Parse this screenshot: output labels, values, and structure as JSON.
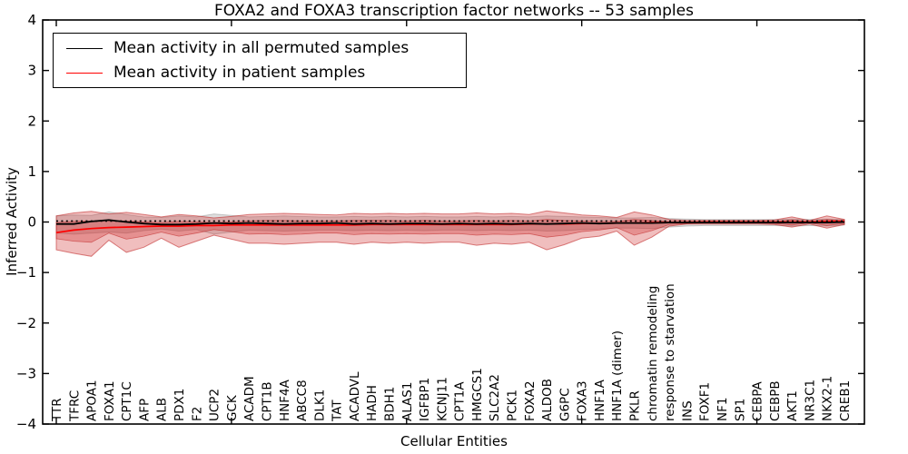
{
  "title": "FOXA2 and FOXA3 transcription factor networks -- 53 samples",
  "axes": {
    "xlabel": "Cellular Entities",
    "ylabel": "Inferred Activity",
    "ylim": [
      -4,
      4
    ],
    "ytick_values": [
      4,
      3,
      2,
      1,
      0,
      -1,
      -2,
      -3,
      -4
    ],
    "ytick_labels": [
      "4",
      "3",
      "2",
      "1",
      "0",
      "−1",
      "−2",
      "−3",
      "−4"
    ],
    "grid": false
  },
  "legend": {
    "position": "upper left",
    "items": [
      {
        "label": "Mean activity in all permuted samples",
        "color": "#000000"
      },
      {
        "label": "Mean activity in patient samples",
        "color": "#ff0000"
      }
    ]
  },
  "colors": {
    "patient_band": "rgba(205,40,40,0.30)",
    "patient_band_edge": "rgba(190,30,30,0.55)",
    "permuted_band": "rgba(0,0,0,0.13)",
    "permuted_band_edge": "rgba(0,0,0,0.18)",
    "permuted_line": "#000000",
    "patient_line": "#ff0000",
    "zero_line": "#000000",
    "spine": "#000000"
  },
  "chart_data": {
    "type": "line",
    "title": "FOXA2 and FOXA3 transcription factor networks -- 53 samples",
    "xlabel": "Cellular Entities",
    "ylabel": "Inferred Activity",
    "ylim": [
      -4,
      4
    ],
    "legend_position": "upper left",
    "categories": [
      "TTR",
      "TFRC",
      "APOA1",
      "FOXA1",
      "CPT1C",
      "AFP",
      "ALB",
      "PDX1",
      "F2",
      "UCP2",
      "GCK",
      "ACADM",
      "CPT1B",
      "HNF4A",
      "ABCC8",
      "DLK1",
      "TAT",
      "ACADVL",
      "HADH",
      "BDH1",
      "ALAS1",
      "IGFBP1",
      "KCNJ11",
      "CPT1A",
      "HMGCS1",
      "SLC2A2",
      "PCK1",
      "FOXA2",
      "ALDOB",
      "G6PC",
      "FOXA3",
      "HNF1A",
      "HNF1A (dimer)",
      "PKLR",
      "chromatin remodeling",
      "response to starvation",
      "INS",
      "FOXF1",
      "NF1",
      "SP1",
      "CEBPA",
      "CEBPB",
      "AKT1",
      "NR3C1",
      "NKX2-1",
      "CREB1"
    ],
    "series": [
      {
        "name": "Mean activity in all permuted samples",
        "color": "#000000",
        "values": [
          -0.04,
          -0.04,
          0.01,
          0.04,
          0.0,
          -0.03,
          -0.05,
          -0.05,
          -0.04,
          -0.02,
          -0.03,
          -0.02,
          -0.03,
          -0.04,
          -0.03,
          -0.03,
          -0.02,
          -0.04,
          -0.03,
          -0.04,
          -0.03,
          -0.03,
          -0.04,
          -0.03,
          -0.04,
          -0.03,
          -0.04,
          -0.03,
          -0.04,
          -0.03,
          -0.02,
          -0.03,
          -0.02,
          -0.02,
          -0.02,
          -0.01,
          -0.01,
          -0.01,
          -0.01,
          -0.01,
          -0.01,
          -0.01,
          -0.01,
          -0.01,
          -0.01,
          0.0
        ]
      },
      {
        "name": "Mean activity in patient samples",
        "color": "#ff0000",
        "values": [
          -0.21,
          -0.16,
          -0.13,
          -0.11,
          -0.1,
          -0.09,
          -0.08,
          -0.08,
          -0.07,
          -0.07,
          -0.06,
          -0.06,
          -0.06,
          -0.06,
          -0.06,
          -0.06,
          -0.06,
          -0.06,
          -0.05,
          -0.05,
          -0.05,
          -0.05,
          -0.05,
          -0.05,
          -0.05,
          -0.05,
          -0.05,
          -0.04,
          -0.04,
          -0.04,
          -0.03,
          -0.03,
          -0.02,
          -0.02,
          -0.01,
          -0.01,
          -0.01,
          0.0,
          0.0,
          0.0,
          0.0,
          0.0,
          0.0,
          0.0,
          0.01,
          0.02
        ]
      }
    ],
    "bands": [
      {
        "name": "permuted-samples-std-band",
        "upper": [
          0.12,
          0.14,
          0.13,
          0.2,
          0.15,
          0.1,
          0.09,
          0.12,
          0.1,
          0.16,
          0.13,
          0.1,
          0.11,
          0.12,
          0.11,
          0.1,
          0.1,
          0.11,
          0.1,
          0.11,
          0.1,
          0.11,
          0.1,
          0.1,
          0.11,
          0.1,
          0.11,
          0.1,
          0.12,
          0.11,
          0.1,
          0.09,
          0.08,
          0.08,
          0.09,
          0.07,
          0.06,
          0.05,
          0.05,
          0.05,
          0.05,
          0.05,
          0.06,
          0.05,
          0.06,
          0.05
        ],
        "lower": [
          -0.22,
          -0.24,
          -0.22,
          -0.2,
          -0.22,
          -0.17,
          -0.14,
          -0.18,
          -0.15,
          -0.24,
          -0.2,
          -0.16,
          -0.17,
          -0.18,
          -0.17,
          -0.16,
          -0.16,
          -0.17,
          -0.16,
          -0.17,
          -0.16,
          -0.17,
          -0.16,
          -0.16,
          -0.17,
          -0.16,
          -0.17,
          -0.16,
          -0.18,
          -0.17,
          -0.15,
          -0.14,
          -0.12,
          -0.12,
          -0.13,
          -0.1,
          -0.08,
          -0.07,
          -0.07,
          -0.07,
          -0.07,
          -0.07,
          -0.08,
          -0.07,
          -0.08,
          -0.06
        ]
      },
      {
        "name": "patient-samples-outer-band",
        "upper": [
          0.12,
          0.18,
          0.21,
          0.16,
          0.19,
          0.15,
          0.1,
          0.15,
          0.12,
          0.08,
          0.11,
          0.15,
          0.16,
          0.17,
          0.16,
          0.15,
          0.14,
          0.17,
          0.16,
          0.17,
          0.16,
          0.17,
          0.16,
          0.16,
          0.18,
          0.16,
          0.17,
          0.15,
          0.22,
          0.18,
          0.14,
          0.12,
          0.09,
          0.2,
          0.14,
          0.05,
          0.03,
          0.03,
          0.03,
          0.03,
          0.03,
          0.04,
          0.1,
          0.03,
          0.12,
          0.05
        ],
        "lower": [
          -0.55,
          -0.62,
          -0.68,
          -0.36,
          -0.6,
          -0.5,
          -0.32,
          -0.5,
          -0.38,
          -0.26,
          -0.34,
          -0.42,
          -0.42,
          -0.44,
          -0.42,
          -0.4,
          -0.4,
          -0.44,
          -0.4,
          -0.42,
          -0.4,
          -0.42,
          -0.4,
          -0.4,
          -0.46,
          -0.42,
          -0.44,
          -0.4,
          -0.55,
          -0.45,
          -0.32,
          -0.28,
          -0.18,
          -0.46,
          -0.3,
          -0.08,
          -0.04,
          -0.04,
          -0.04,
          -0.04,
          -0.04,
          -0.05,
          -0.1,
          -0.04,
          -0.12,
          -0.05
        ]
      },
      {
        "name": "patient-samples-inner-band",
        "upper": [
          -0.01,
          0.01,
          0.02,
          0.03,
          0.02,
          0.0,
          -0.01,
          0.01,
          0.0,
          -0.01,
          0.0,
          0.02,
          0.03,
          0.03,
          0.02,
          0.02,
          0.02,
          0.03,
          0.03,
          0.03,
          0.02,
          0.03,
          0.02,
          0.02,
          0.03,
          0.02,
          0.03,
          0.02,
          0.05,
          0.03,
          0.02,
          0.01,
          0.01,
          0.05,
          0.03,
          0.01,
          0.01,
          0.01,
          0.01,
          0.01,
          0.01,
          0.01,
          0.04,
          0.01,
          0.05,
          0.02
        ],
        "lower": [
          -0.33,
          -0.38,
          -0.4,
          -0.22,
          -0.34,
          -0.28,
          -0.2,
          -0.28,
          -0.22,
          -0.15,
          -0.19,
          -0.24,
          -0.23,
          -0.25,
          -0.24,
          -0.22,
          -0.22,
          -0.25,
          -0.23,
          -0.24,
          -0.23,
          -0.24,
          -0.23,
          -0.23,
          -0.26,
          -0.24,
          -0.25,
          -0.23,
          -0.3,
          -0.26,
          -0.19,
          -0.16,
          -0.11,
          -0.26,
          -0.17,
          -0.05,
          -0.03,
          -0.02,
          -0.02,
          -0.02,
          -0.02,
          -0.03,
          -0.06,
          -0.02,
          -0.07,
          -0.03
        ]
      }
    ],
    "zero_line": {
      "style": "dotted",
      "value": 0.02
    }
  }
}
